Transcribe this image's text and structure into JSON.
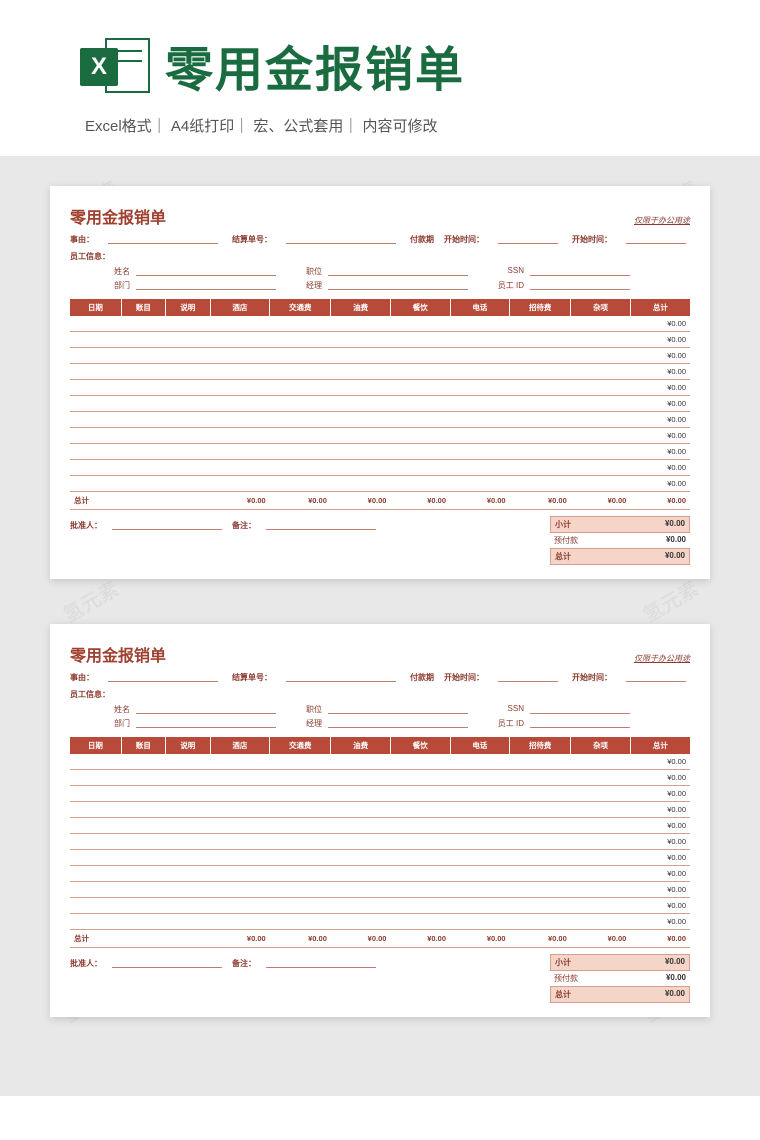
{
  "header": {
    "excel_x": "X",
    "main_title": "零用金报销单",
    "subtitle": "Excel格式｜ A4纸打印｜ 宏、公式套用｜ 内容可修改"
  },
  "watermark_text": "氢元素",
  "sheet": {
    "title": "零用金报销单",
    "office_hint": "仅限于办公用途",
    "meta": {
      "reason_lbl": "事由：",
      "settle_no_lbl": "结算单号：",
      "pay_period_lbl": "付款期",
      "start_time_lbl": "开始时间：",
      "end_time_lbl": "开始时间："
    },
    "emp_section_lbl": "员工信息：",
    "emp": {
      "name_lbl": "姓名",
      "position_lbl": "职位",
      "ssn_lbl": "SSN",
      "dept_lbl": "部门",
      "manager_lbl": "经理",
      "empid_lbl": "员工 ID"
    },
    "columns": [
      "日期",
      "账目",
      "说明",
      "酒店",
      "交通费",
      "油费",
      "餐饮",
      "电话",
      "招待费",
      "杂项",
      "总计"
    ],
    "row_count": 11,
    "default_total": "¥0.00",
    "totals_row_lbl": "总计",
    "totals_values": [
      "",
      "",
      "",
      "¥0.00",
      "¥0.00",
      "¥0.00",
      "¥0.00",
      "¥0.00",
      "¥0.00",
      "¥0.00",
      "¥0.00"
    ],
    "footer": {
      "approver_lbl": "批准人：",
      "note_lbl": "备注：",
      "subtotal_lbl": "小计",
      "advance_lbl": "预付款",
      "total_lbl": "总计",
      "subtotal_val": "¥0.00",
      "advance_val": "¥0.00",
      "total_val": "¥0.00"
    }
  },
  "colors": {
    "header_green": "#1a6b3f",
    "table_header_bg": "#b84a3a",
    "brown_text": "#8b3a2e",
    "row_border": "#d4a090",
    "highlight_bg": "#f5d5c8",
    "preview_bg": "#e8e8e8"
  }
}
